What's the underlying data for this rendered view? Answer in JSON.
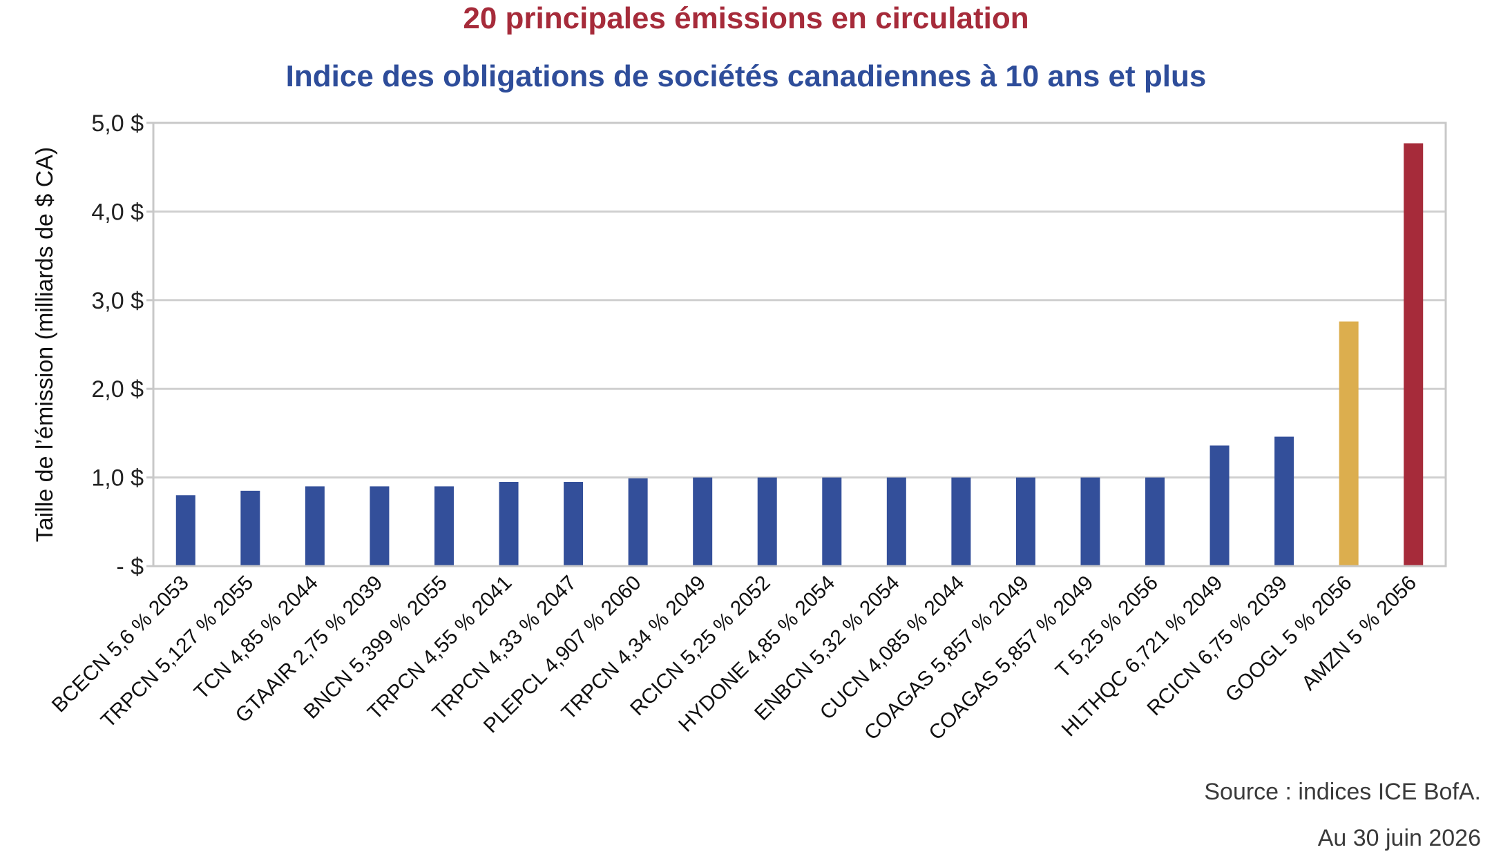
{
  "chart_data": {
    "type": "bar",
    "title": "20 principales émissions en circulation",
    "subtitle": "Indice des obligations de sociétés canadiennes à 10 ans et plus",
    "ylabel": "Taille de l’émission (milliards de $ CA)",
    "xlabel": "",
    "ylim": [
      0,
      5
    ],
    "yticks": [
      0,
      1,
      2,
      3,
      4,
      5
    ],
    "ytick_labels": [
      "- $",
      "1,0 $",
      "2,0 $",
      "3,0 $",
      "4,0 $",
      "5,0 $"
    ],
    "grid": true,
    "categories": [
      "BCECN 5,6 % 2053",
      "TRPCN 5,127 % 2055",
      "TCN 4,85 % 2044",
      "GTAAIR 2,75 % 2039",
      "BNCN 5,399 % 2055",
      "TRPCN 4,55 % 2041",
      "TRPCN 4,33 % 2047",
      "PLEPCL 4,907 % 2060",
      "TRPCN 4,34 % 2049",
      "RCICN 5,25 % 2052",
      "HYDONE 4,85 % 2054",
      "ENBCN 5,32 % 2054",
      "CUCN 4,085 % 2044",
      "COAGAS 5,857 % 2049",
      "COAGAS 5,857 % 2049",
      "T 5,25 % 2056",
      "HLTHQC 6,721 % 2049",
      "RCICN 6,75 % 2039",
      "GOOGL 5 % 2056",
      "AMZN 5 % 2056"
    ],
    "values": [
      0.8,
      0.85,
      0.9,
      0.9,
      0.9,
      0.95,
      0.95,
      0.99,
      1.0,
      1.0,
      1.0,
      1.0,
      1.0,
      1.0,
      1.0,
      1.0,
      1.36,
      1.46,
      2.76,
      4.77
    ],
    "bar_colors": [
      "#334f9a",
      "#334f9a",
      "#334f9a",
      "#334f9a",
      "#334f9a",
      "#334f9a",
      "#334f9a",
      "#334f9a",
      "#334f9a",
      "#334f9a",
      "#334f9a",
      "#334f9a",
      "#334f9a",
      "#334f9a",
      "#334f9a",
      "#334f9a",
      "#334f9a",
      "#334f9a",
      "#dcae4e",
      "#a62b3a"
    ]
  },
  "colors": {
    "title": "#a62b3a",
    "subtitle": "#2e4d9a",
    "grid": "#d0d0d0",
    "frame": "#c8c8c8"
  },
  "footer": {
    "source": "Source : indices ICE BofA.",
    "date": "Au 30 juin 2026"
  }
}
